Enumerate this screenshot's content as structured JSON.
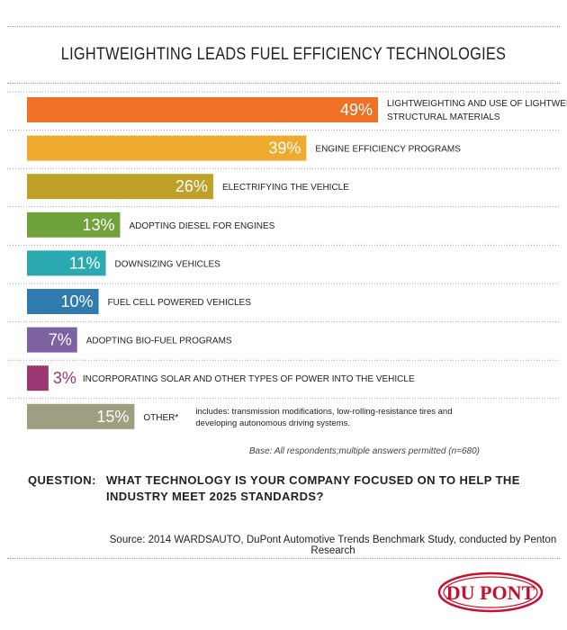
{
  "title": "LIGHTWEIGHTING LEADS FUEL EFFICIENCY TECHNOLOGIES",
  "base_note": "Base: All respondents;multiple answers permitted (n=680)",
  "question": {
    "label": "QUESTION:",
    "text": "WHAT TECHNOLOGY IS YOUR COMPANY FOCUSED ON TO HELP THE INDUSTRY MEET 2025 STANDARDS?"
  },
  "source": "Source: 2014 WARDSAUTO, DuPont Automotive Trends Benchmark Study, conducted by Penton Research",
  "logo": {
    "text": "DU PONT",
    "color": "#c8102e"
  },
  "chart_data": {
    "type": "bar",
    "orientation": "horizontal",
    "title": "LIGHTWEIGHTING LEADS FUEL EFFICIENCY TECHNOLOGIES",
    "xlim": [
      0,
      50
    ],
    "categories": [
      [
        "LIGHTWEIGHTING AND USE OF LIGHTWEIGHT",
        "STRUCTURAL MATERIALS"
      ],
      [
        "ENGINE EFFICIENCY PROGRAMS"
      ],
      [
        "ELECTRIFYING THE VEHICLE"
      ],
      [
        "ADOPTING DIESEL FOR ENGINES"
      ],
      [
        "DOWNSIZING VEHICLES"
      ],
      [
        "FUEL CELL POWERED VEHICLES"
      ],
      [
        "ADOPTING BIO-FUEL PROGRAMS"
      ],
      [
        "INCORPORATING SOLAR AND OTHER TYPES OF POWER INTO THE VEHICLE"
      ],
      [
        "OTHER*"
      ]
    ],
    "other_note": [
      "includes: transmission modifications, low-rolling-resistance tires and",
      "developing autonomous driving systems."
    ],
    "values": [
      49,
      39,
      26,
      13,
      11,
      10,
      7,
      3,
      15
    ],
    "value_labels": [
      "49%",
      "39%",
      "26%",
      "13%",
      "11%",
      "10%",
      "7%",
      "3%",
      "15%"
    ],
    "colors": [
      "#ee7127",
      "#eeab2e",
      "#bfa128",
      "#6fa23b",
      "#2aaab0",
      "#2f7bb0",
      "#7c62a3",
      "#9b3873",
      "#a09e80"
    ],
    "grid": false,
    "legend": "none"
  }
}
